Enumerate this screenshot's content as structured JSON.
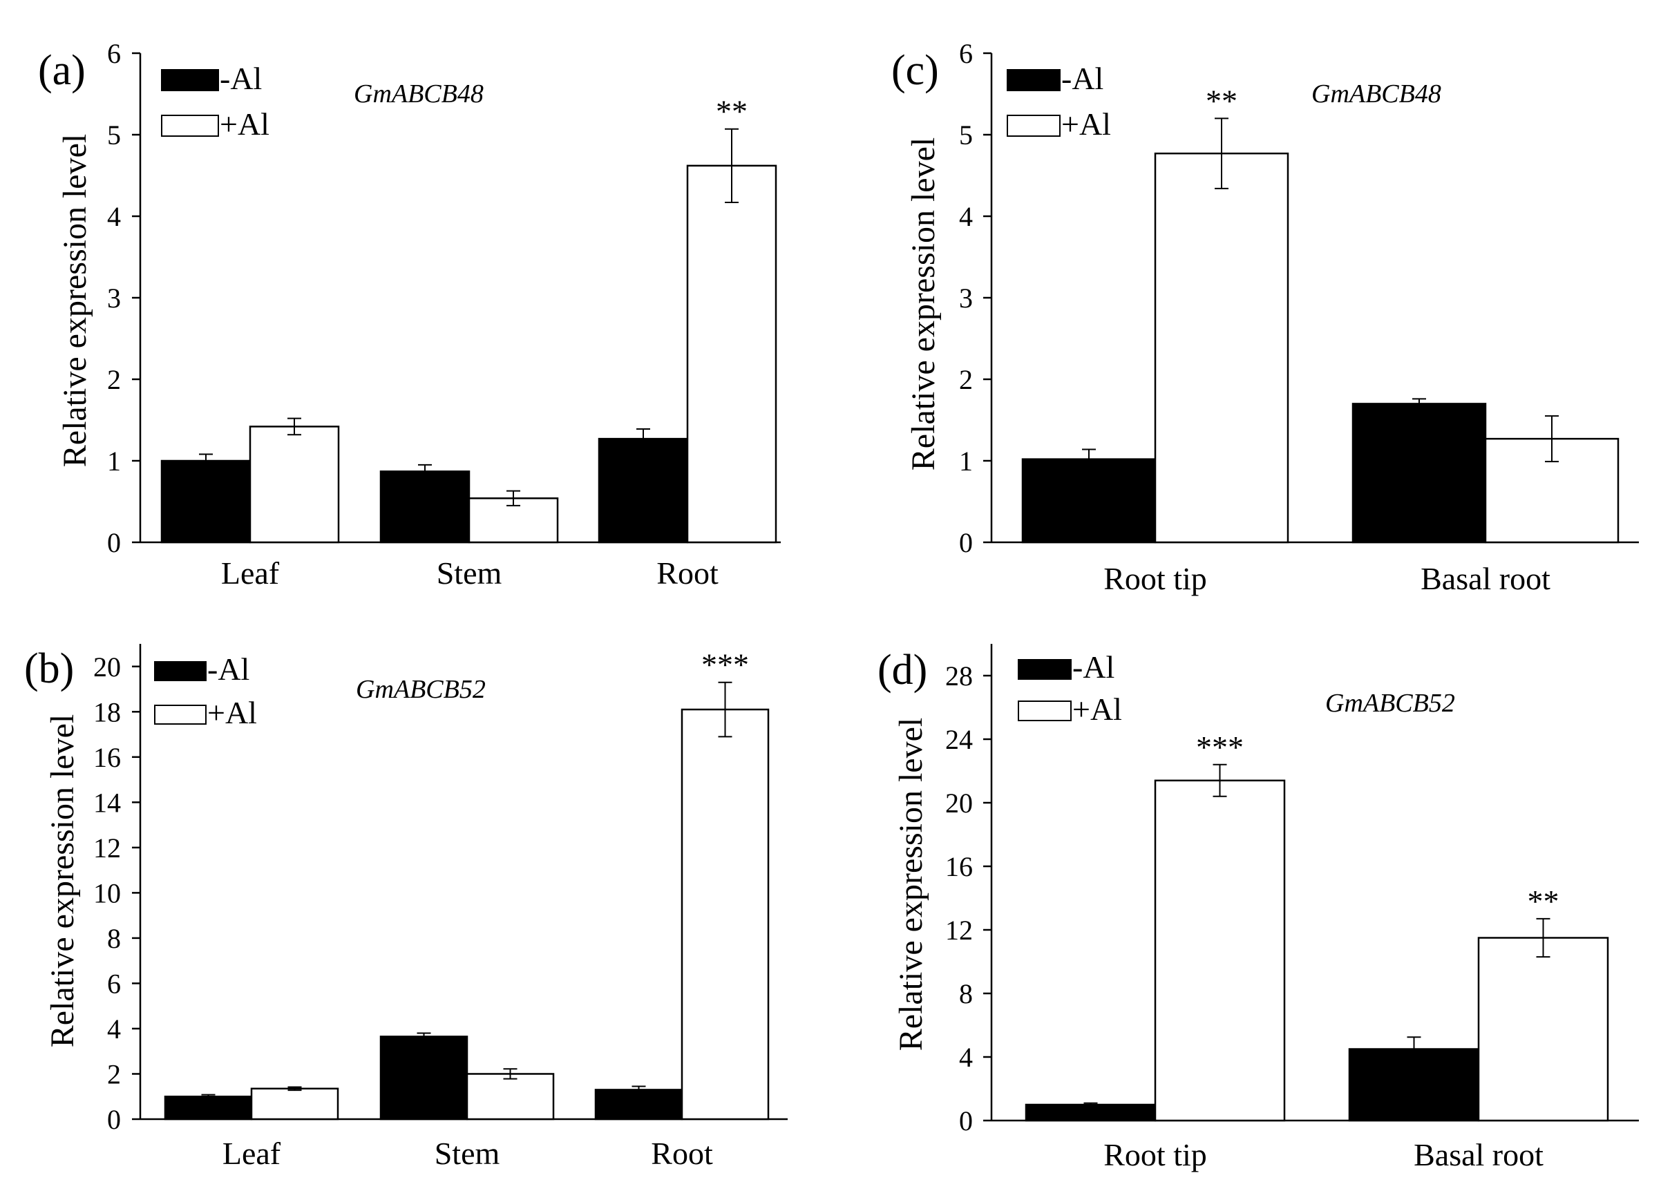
{
  "colors": {
    "minus_al": "#000000",
    "plus_al": "#ffffff",
    "axis": "#000000"
  },
  "chart_data": [
    {
      "type": "bar",
      "panel": "(a)",
      "title": "GmABCB48",
      "xlabel": "",
      "ylabel": "Relative expression level",
      "ylim": [
        0,
        6
      ],
      "yticks": [
        0,
        1,
        2,
        3,
        4,
        5,
        6
      ],
      "legend": "top-left",
      "categories": [
        "Leaf",
        "Stem",
        "Root"
      ],
      "series": [
        {
          "name": "-Al",
          "values": [
            1.0,
            0.87,
            1.27
          ],
          "errors": [
            0.08,
            0.08,
            0.12
          ]
        },
        {
          "name": "+Al",
          "values": [
            1.42,
            0.54,
            4.62
          ],
          "errors": [
            0.1,
            0.09,
            0.45
          ]
        }
      ],
      "significance": [
        {
          "category": "Root",
          "series": "+Al",
          "label": "**"
        }
      ]
    },
    {
      "type": "bar",
      "panel": "(b)",
      "title": "GmABCB52",
      "xlabel": "",
      "ylabel": "Relative expression level",
      "ylim": [
        0,
        21
      ],
      "yticks": [
        0,
        2,
        4,
        6,
        8,
        10,
        12,
        14,
        16,
        18,
        20
      ],
      "legend": "top-left",
      "categories": [
        "Leaf",
        "Stem",
        "Root"
      ],
      "series": [
        {
          "name": "-Al",
          "values": [
            1.0,
            3.65,
            1.3
          ],
          "errors": [
            0.08,
            0.15,
            0.15
          ]
        },
        {
          "name": "+Al",
          "values": [
            1.35,
            2.0,
            18.1
          ],
          "errors": [
            0.07,
            0.22,
            1.2
          ]
        }
      ],
      "significance": [
        {
          "category": "Root",
          "series": "+Al",
          "label": "***"
        }
      ]
    },
    {
      "type": "bar",
      "panel": "(c)",
      "title": "GmABCB48",
      "xlabel": "",
      "ylabel": "Relative expression level",
      "ylim": [
        0,
        6
      ],
      "yticks": [
        0,
        1,
        2,
        3,
        4,
        5,
        6
      ],
      "legend": "top-left",
      "categories": [
        "Root tip",
        "Basal root"
      ],
      "series": [
        {
          "name": "-Al",
          "values": [
            1.02,
            1.7
          ],
          "errors": [
            0.12,
            0.06
          ]
        },
        {
          "name": "+Al",
          "values": [
            4.77,
            1.27
          ],
          "errors": [
            0.43,
            0.28
          ]
        }
      ],
      "significance": [
        {
          "category": "Root tip",
          "series": "+Al",
          "label": "**"
        }
      ]
    },
    {
      "type": "bar",
      "panel": "(d)",
      "title": "GmABCB52",
      "xlabel": "",
      "ylabel": "Relative expression level",
      "ylim": [
        0,
        30
      ],
      "yticks": [
        0,
        4,
        8,
        12,
        16,
        20,
        24,
        28
      ],
      "legend": "top-left",
      "categories": [
        "Root tip",
        "Basal root"
      ],
      "series": [
        {
          "name": "-Al",
          "values": [
            1.0,
            4.5
          ],
          "errors": [
            0.1,
            0.75
          ]
        },
        {
          "name": "+Al",
          "values": [
            21.4,
            11.5
          ],
          "errors": [
            1.0,
            1.2
          ]
        }
      ],
      "significance": [
        {
          "category": "Root tip",
          "series": "+Al",
          "label": "***"
        },
        {
          "category": "Basal root",
          "series": "+Al",
          "label": "**"
        }
      ]
    }
  ]
}
